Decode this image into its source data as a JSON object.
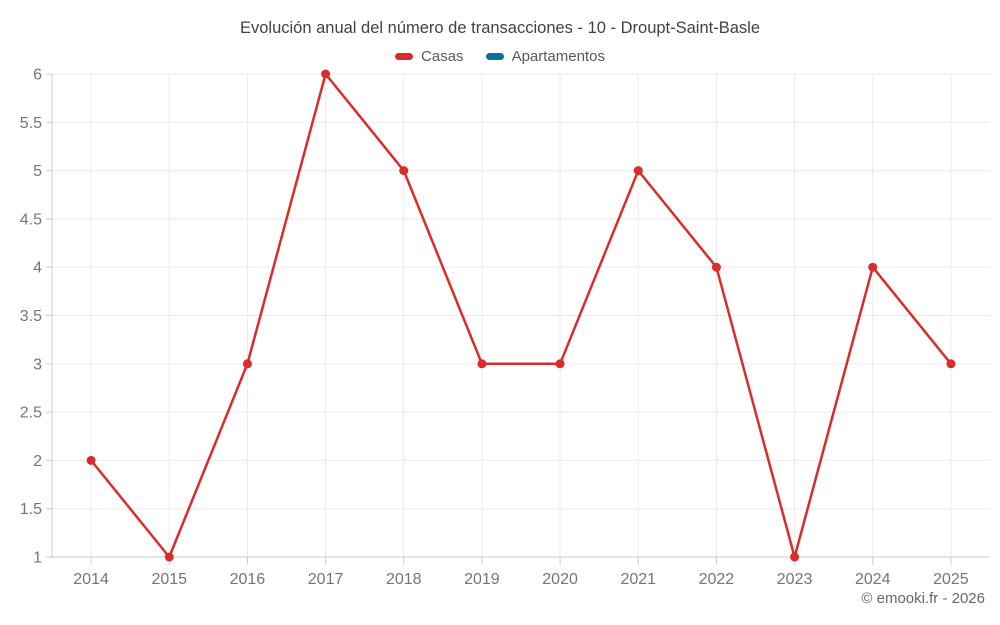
{
  "title": "Evolución anual del número de transacciones - 10 - Droupt-Saint-Basle",
  "legend": {
    "items": [
      {
        "label": "Casas",
        "color": "#d92c2c"
      },
      {
        "label": "Apartamentos",
        "color": "#0d6ea1"
      }
    ]
  },
  "footer": {
    "copyright": "© emooki.fr - 2026"
  },
  "colors": {
    "background": "#ffffff",
    "grid": "#ebebeb",
    "axis": "#cccccc",
    "tick_label": "#757575",
    "title_text": "#424242",
    "legend_text": "#595959",
    "copyright_text": "#666666"
  },
  "chart_data": {
    "type": "line",
    "title": "Evolución anual del número de transacciones - 10 - Droupt-Saint-Basle",
    "x": [
      2014,
      2015,
      2016,
      2017,
      2018,
      2019,
      2020,
      2021,
      2022,
      2023,
      2024,
      2025
    ],
    "series": [
      {
        "name": "Casas",
        "color": "#d92c2c",
        "values": [
          2,
          1,
          3,
          6,
          5,
          3,
          3,
          5,
          4,
          1,
          4,
          3
        ]
      },
      {
        "name": "Apartamentos",
        "color": "#0d6ea1",
        "values": []
      }
    ],
    "xlabel": "",
    "ylabel": "",
    "ylim": [
      1,
      6
    ],
    "ytick_step": 0.5,
    "grid": true,
    "legend_position": "top",
    "marker": "circle"
  }
}
